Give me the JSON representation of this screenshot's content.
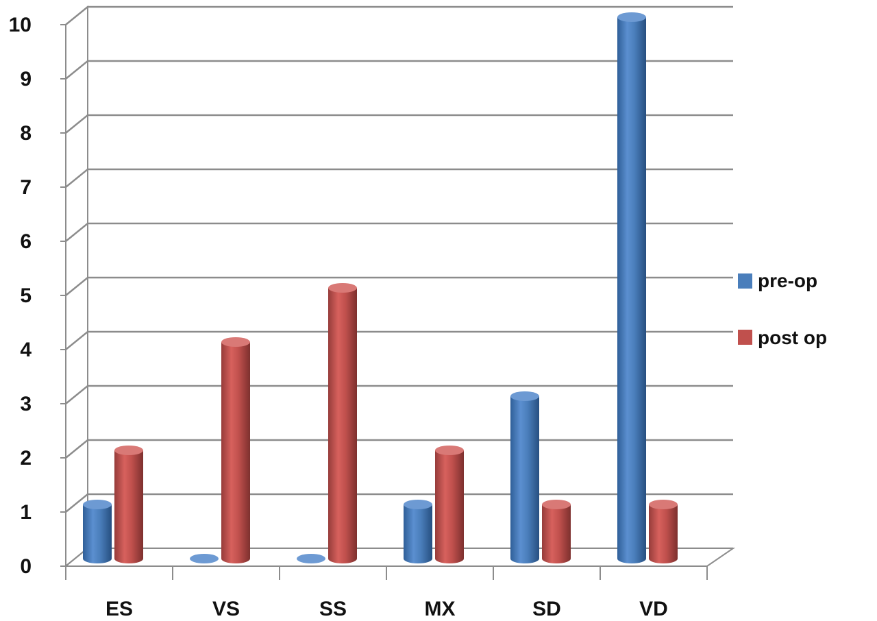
{
  "chart_data": {
    "type": "bar",
    "style": "3d-cylinder",
    "categories": [
      "ES",
      "VS",
      "SS",
      "MX",
      "SD",
      "VD"
    ],
    "series": [
      {
        "name": "pre-op",
        "values": [
          1,
          0,
          0,
          1,
          3,
          10
        ],
        "color": "#4a7ebb"
      },
      {
        "name": "post op",
        "values": [
          2,
          4,
          5,
          2,
          1,
          1
        ],
        "color": "#c0504d"
      }
    ],
    "y_ticks": [
      "0",
      "1",
      "2",
      "3",
      "4",
      "5",
      "6",
      "7",
      "8",
      "9",
      "10"
    ],
    "ylim": [
      0,
      10
    ],
    "grid": true,
    "legend_position": "right"
  }
}
